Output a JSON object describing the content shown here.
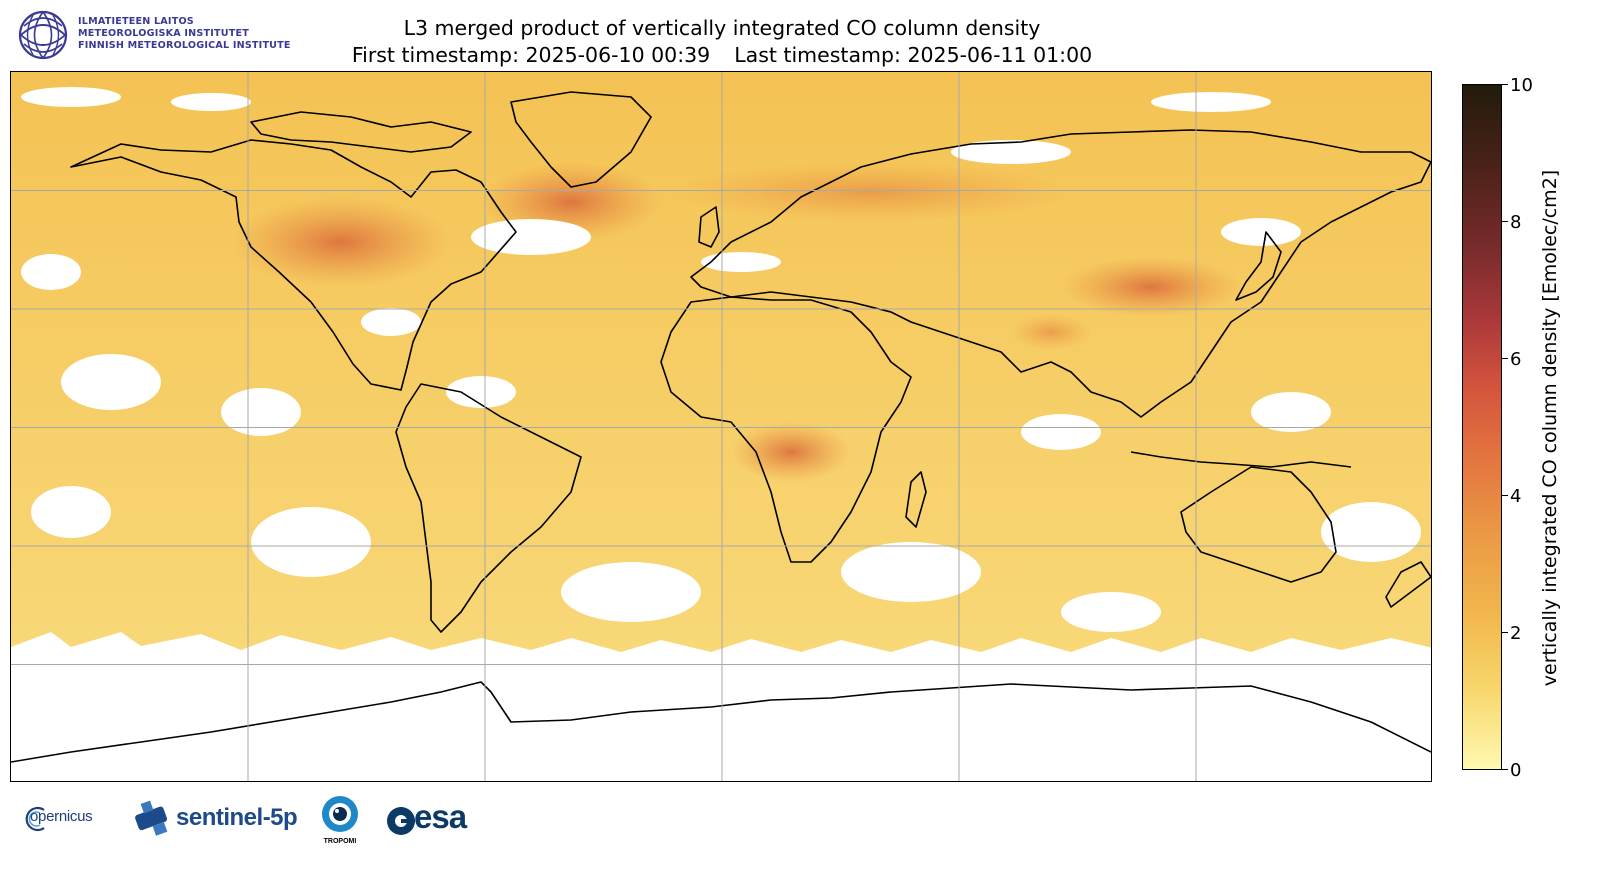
{
  "header": {
    "institute_lines": [
      "ILMATIETEEN LAITOS",
      "METEOROLOGISKA INSTITUTET",
      "FINNISH METEOROLOGICAL INSTITUTE"
    ],
    "title_line1": "L3 merged product of vertically integrated CO column density",
    "first_timestamp": "First timestamp: 2025-06-10 00:39",
    "last_timestamp": "Last timestamp: 2025-06-11 01:00"
  },
  "map": {
    "projection": "Plate Carrée",
    "extent_lon": [
      -180,
      180
    ],
    "extent_lat": [
      -90,
      90
    ],
    "gridlines_lon": [
      -120,
      -60,
      0,
      60,
      120
    ],
    "gridlines_lat": [
      -60,
      -30,
      0,
      30,
      60
    ],
    "grid_color": "#a8a8a8",
    "no_data_color": "#ffffff",
    "background_field_color": "#f4c253",
    "high_value_color": "#d9683a"
  },
  "colorbar": {
    "label": "vertically integrated CO column density [Emolec/cm2]",
    "ticks": [
      "0",
      "2",
      "4",
      "6",
      "8",
      "10"
    ],
    "range": [
      0,
      10
    ],
    "colors": [
      "#fff8b0",
      "#f7d66a",
      "#f2b84e",
      "#eb9a45",
      "#e3733f",
      "#d3533d",
      "#a9383a",
      "#7a2b2c",
      "#4b2219",
      "#221b0c"
    ]
  },
  "logos": {
    "copernicus": "opernicus",
    "sentinel": "sentinel-5p",
    "tropomi": "TROPOMI",
    "esa": "esa"
  }
}
